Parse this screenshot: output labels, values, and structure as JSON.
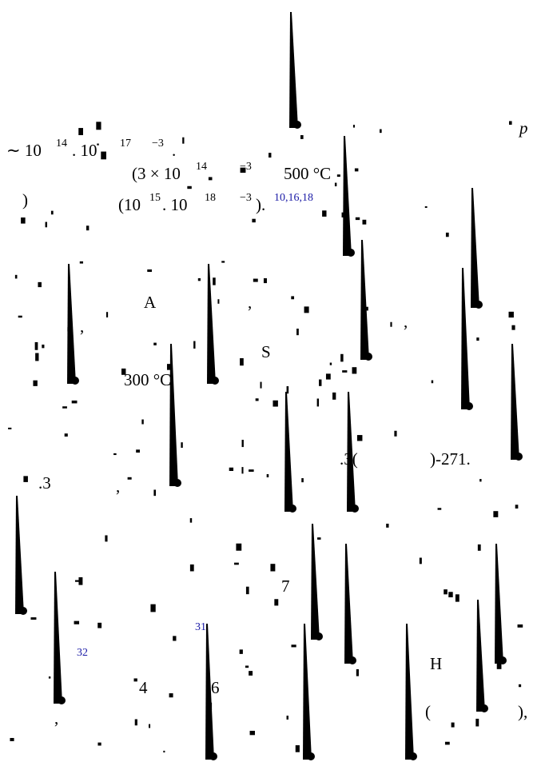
{
  "fragments": [
    {
      "text": "p"
    },
    {
      "text": "∼ 10"
    },
    {
      "text": "14"
    },
    {
      "text": ". 10"
    },
    {
      "text": "17"
    },
    {
      "text": "−3"
    },
    {
      "text": "."
    },
    {
      "text": "(3 × 10"
    },
    {
      "text": "14"
    },
    {
      "text": "−3"
    },
    {
      "text": "500 °C"
    },
    {
      "text": ")"
    },
    {
      "text": "(10"
    },
    {
      "text": "15"
    },
    {
      "text": ". 10"
    },
    {
      "text": "18"
    },
    {
      "text": "−3"
    },
    {
      "text": ")."
    },
    {
      "text": "10,16,18"
    },
    {
      "text": "A"
    },
    {
      "text": ","
    },
    {
      "text": ","
    },
    {
      "text": ","
    },
    {
      "text": "S"
    },
    {
      "text": "300 °C"
    },
    {
      "text": ".3("
    },
    {
      "text": ")-271."
    },
    {
      "text": ".3"
    },
    {
      "text": ","
    },
    {
      "text": "7"
    },
    {
      "text": "31"
    },
    {
      "text": "32"
    },
    {
      "text": "H"
    },
    {
      "text": "4"
    },
    {
      "text": "6"
    },
    {
      "text": "("
    },
    {
      "text": "),"
    },
    {
      "text": ","
    }
  ]
}
